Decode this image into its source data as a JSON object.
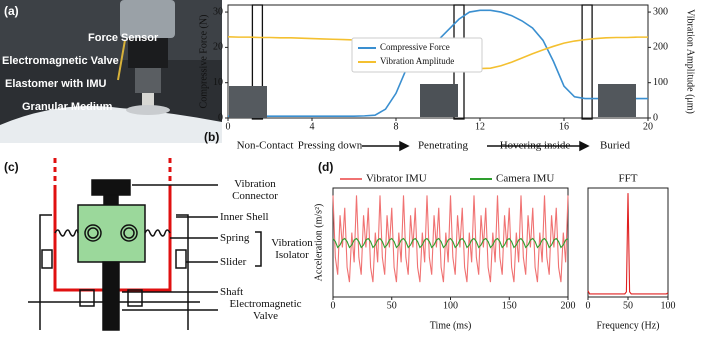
{
  "panel_a": {
    "label": "(a)",
    "annotations": [
      "Force Sensor",
      "Electromagnetic Valve",
      "Elastomer with IMU",
      "Granular Medium"
    ]
  },
  "panel_c": {
    "label": "(c)",
    "labels": [
      "Vibration Connector",
      "Inner Shell",
      "Spring",
      "Slider",
      "Vibration Isolator",
      "Shaft",
      "Electromagnetic Valve"
    ]
  },
  "chart_data": [
    {
      "type": "line",
      "label": "(b)",
      "x": [
        0,
        0.5,
        1,
        1.5,
        2,
        2.5,
        3,
        3.5,
        4,
        4.5,
        5,
        5.5,
        6,
        6.5,
        7,
        7.5,
        8,
        8.5,
        9,
        9.5,
        10,
        10.5,
        11,
        11.5,
        12,
        12.5,
        13,
        13.5,
        14,
        14.5,
        15,
        15.5,
        16,
        16.5,
        17,
        17.5,
        18,
        18.5,
        19,
        19.5,
        20
      ],
      "xlim": [
        0,
        20
      ],
      "xticks": [
        0,
        4,
        8,
        12,
        16,
        20
      ],
      "ylim": [
        0,
        32
      ],
      "yticks": [
        0,
        10,
        20,
        30
      ],
      "y2lim": [
        0,
        320
      ],
      "y2ticks": [
        0,
        100,
        200,
        300
      ],
      "ylabel": "Compressive Force (N)",
      "y2label": "Vibration Amplitude (μm)",
      "legend": "upper center",
      "markers_x": [
        1.4,
        11.0,
        17.1
      ],
      "annotations": [
        "Non-Contact",
        "Pressing down",
        "Penetrating",
        "Hovering inside",
        "Buried"
      ],
      "series": [
        {
          "name": "Compressive Force",
          "color": "#3a8fd0",
          "values": [
            0.5,
            0.5,
            0.5,
            0.5,
            0.5,
            0.5,
            0.5,
            0.5,
            0.5,
            0.5,
            0.5,
            0.5,
            0.5,
            0.6,
            0.8,
            2.5,
            7,
            14,
            17,
            19,
            22,
            25,
            28,
            30,
            30.5,
            30.5,
            30,
            29,
            27.5,
            25.5,
            22,
            16,
            9,
            6,
            5.5,
            5.5,
            5.5,
            5.5,
            5.5,
            5.5,
            5.5
          ]
        },
        {
          "name": "Vibration Amplitude",
          "color": "#f4c030",
          "axis": "y2",
          "values": [
            230,
            229,
            229,
            228,
            228,
            227,
            227,
            226,
            225,
            224,
            223,
            222,
            221,
            220,
            218,
            216,
            212,
            206,
            200,
            190,
            178,
            166,
            155,
            145,
            140,
            141,
            148,
            158,
            170,
            182,
            193,
            203,
            212,
            218,
            222,
            225,
            227,
            228,
            228,
            229,
            229
          ]
        }
      ]
    },
    {
      "type": "line",
      "label": "(d)",
      "x": [
        0,
        2,
        4,
        6,
        8,
        10,
        12,
        14,
        16,
        18,
        20,
        22,
        24,
        26,
        28,
        30,
        32,
        34,
        36,
        38,
        40,
        42,
        44,
        46,
        48,
        50,
        52,
        54,
        56,
        58,
        60,
        62,
        64,
        66,
        68,
        70,
        72,
        74,
        76,
        78,
        80,
        82,
        84,
        86,
        88,
        90,
        92,
        94,
        96,
        98,
        100,
        102,
        104,
        106,
        108,
        110,
        112,
        114,
        116,
        118,
        120,
        122,
        124,
        126,
        128,
        130,
        132,
        134,
        136,
        138,
        140,
        142,
        144,
        146,
        148,
        150,
        152,
        154,
        156,
        158,
        160,
        162,
        164,
        166,
        168,
        170,
        172,
        174,
        176,
        178,
        180,
        182,
        184,
        186,
        188,
        190,
        192,
        194,
        196,
        198,
        200
      ],
      "xlim": [
        0,
        200
      ],
      "xticks": [
        0,
        50,
        100,
        150,
        200
      ],
      "ylim": [
        -1.1,
        1.1
      ],
      "xlabel": "Time (ms)",
      "ylabel": "Acceleration (m/s²)",
      "legend": "above",
      "series": [
        {
          "name": "Vibrator IMU",
          "color": "#f07272",
          "values": [
            0.95,
            -0.3,
            -0.65,
            0.55,
            -0.1,
            0.7,
            -0.5,
            -0.8,
            0.2,
            -0.4,
            0.95,
            -0.3,
            -0.65,
            0.55,
            -0.1,
            0.7,
            -0.5,
            -0.8,
            0.2,
            -0.4,
            0.95,
            -0.3,
            -0.65,
            0.55,
            -0.1,
            0.7,
            -0.5,
            -0.8,
            0.2,
            -0.4,
            0.95,
            -0.3,
            -0.65,
            0.55,
            -0.1,
            0.7,
            -0.5,
            -0.8,
            0.2,
            -0.4,
            0.95,
            -0.3,
            -0.65,
            0.55,
            -0.1,
            0.7,
            -0.5,
            -0.8,
            0.2,
            -0.4,
            0.95,
            -0.3,
            -0.65,
            0.55,
            -0.1,
            0.7,
            -0.5,
            -0.8,
            0.2,
            -0.4,
            0.95,
            -0.3,
            -0.65,
            0.55,
            -0.1,
            0.7,
            -0.5,
            -0.8,
            0.2,
            -0.4,
            0.95,
            -0.3,
            -0.65,
            0.55,
            -0.1,
            0.7,
            -0.5,
            -0.8,
            0.2,
            -0.4,
            0.95,
            -0.3,
            -0.65,
            0.55,
            -0.1,
            0.7,
            -0.5,
            -0.8,
            0.2,
            -0.4,
            0.95,
            -0.3,
            -0.65,
            0.55,
            -0.1,
            0.7,
            -0.5,
            -0.8,
            0.2,
            -0.4,
            0.95
          ]
        },
        {
          "name": "Camera IMU",
          "color": "#2e9e2e",
          "values": [
            0.08,
            0.02,
            -0.1,
            -0.05,
            0.05,
            0.08,
            0.02,
            -0.1,
            -0.05,
            0.05,
            0.08,
            0.02,
            -0.1,
            -0.05,
            0.05,
            0.08,
            0.02,
            -0.1,
            -0.05,
            0.05,
            0.08,
            0.02,
            -0.1,
            -0.05,
            0.05,
            0.08,
            0.02,
            -0.1,
            -0.05,
            0.05,
            0.08,
            0.02,
            -0.1,
            -0.05,
            0.05,
            0.08,
            0.02,
            -0.1,
            -0.05,
            0.05,
            0.08,
            0.02,
            -0.1,
            -0.05,
            0.05,
            0.08,
            0.02,
            -0.1,
            -0.05,
            0.05,
            0.08,
            0.02,
            -0.1,
            -0.05,
            0.05,
            0.08,
            0.02,
            -0.1,
            -0.05,
            0.05,
            0.08,
            0.02,
            -0.1,
            -0.05,
            0.05,
            0.08,
            0.02,
            -0.1,
            -0.05,
            0.05,
            0.08,
            0.02,
            -0.1,
            -0.05,
            0.05,
            0.08,
            0.02,
            -0.1,
            -0.05,
            0.05,
            0.08,
            0.02,
            -0.1,
            -0.05,
            0.05,
            0.08,
            0.02,
            -0.1,
            -0.05,
            0.05,
            0.08,
            0.02,
            -0.1,
            -0.05,
            0.05,
            0.08,
            0.02,
            -0.1,
            -0.05,
            0.05,
            0.08
          ]
        }
      ]
    },
    {
      "type": "line",
      "title": "FFT",
      "x": [
        0,
        2,
        4,
        6,
        8,
        10,
        12,
        14,
        16,
        18,
        20,
        22,
        24,
        26,
        28,
        30,
        32,
        34,
        36,
        38,
        40,
        42,
        44,
        46,
        48,
        50,
        52,
        54,
        56,
        58,
        60,
        62,
        64,
        66,
        68,
        70,
        72,
        74,
        76,
        78,
        80,
        82,
        84,
        86,
        88,
        90,
        92,
        94,
        96,
        98,
        100
      ],
      "xlim": [
        0,
        100
      ],
      "xticks": [
        0,
        50,
        100
      ],
      "ylim": [
        0,
        1.05
      ],
      "xlabel": "Frequency (Hz)",
      "series": [
        {
          "color": "#e02020",
          "values": [
            0.06,
            0.03,
            0.03,
            0.03,
            0.03,
            0.03,
            0.03,
            0.03,
            0.03,
            0.03,
            0.03,
            0.03,
            0.03,
            0.03,
            0.03,
            0.03,
            0.03,
            0.03,
            0.03,
            0.03,
            0.03,
            0.03,
            0.03,
            0.03,
            0.05,
            1.0,
            0.05,
            0.03,
            0.03,
            0.03,
            0.03,
            0.03,
            0.03,
            0.03,
            0.03,
            0.03,
            0.03,
            0.03,
            0.03,
            0.03,
            0.03,
            0.03,
            0.03,
            0.03,
            0.03,
            0.03,
            0.03,
            0.03,
            0.03,
            0.03,
            0.04
          ]
        }
      ]
    }
  ]
}
